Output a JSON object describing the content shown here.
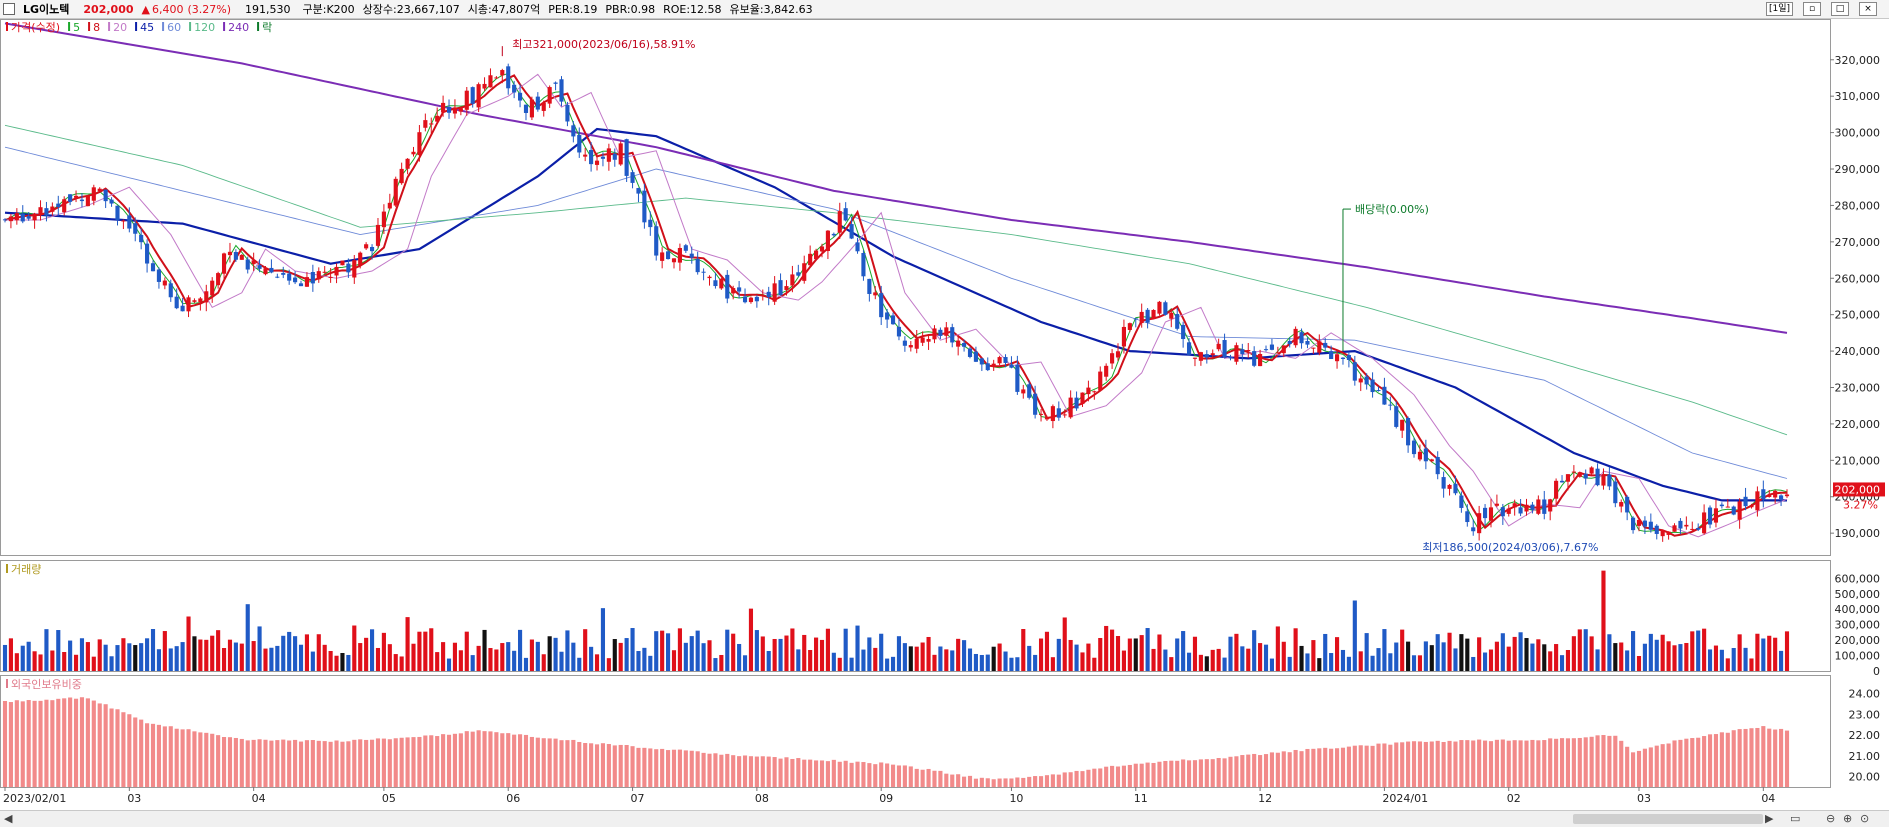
{
  "header": {
    "stock_name": "LG이노텍",
    "price": "202,000",
    "change_arrow": "▲",
    "change": "6,400",
    "change_pct": "(3.27%)",
    "prev": "191,530",
    "gubun": "구분:K200",
    "shares": "상장수:23,667,107",
    "mktcap": "시총:47,807억",
    "per": "PER:8.19",
    "pbr": "PBR:0.98",
    "roe": "ROE:12.58",
    "reserve": "유보율:3,842.63",
    "period": "[1일]",
    "colors": {
      "up": "#e0101a",
      "down": "#1f5ac6"
    }
  },
  "legend": {
    "items": [
      {
        "label": "가격(수정)",
        "color": "#e0101a"
      },
      {
        "label": "5",
        "color": "#1aa82a"
      },
      {
        "label": "8",
        "color": "#d0101a"
      },
      {
        "label": "20",
        "color": "#c27ac8"
      },
      {
        "label": "45",
        "color": "#0b1fa8"
      },
      {
        "label": "60",
        "color": "#6e8ad8"
      },
      {
        "label": "120",
        "color": "#5aba8a"
      },
      {
        "label": "240",
        "color": "#7b2db5"
      },
      {
        "label": "락",
        "color": "#0c7a2a"
      }
    ]
  },
  "volume_label": "거래량",
  "foreign_label": "외국인보유비중",
  "chart_data": {
    "type": "candlestick",
    "price_axis": {
      "ticks": [
        "320,000",
        "310,000",
        "300,000",
        "290,000",
        "280,000",
        "270,000",
        "260,000",
        "250,000",
        "240,000",
        "230,000",
        "220,000",
        "210,000",
        "200,000",
        "190,000"
      ],
      "range": [
        184000,
        329000
      ]
    },
    "volume_axis": {
      "ticks": [
        "600,000",
        "500,000",
        "400,000",
        "300,000",
        "200,000",
        "100,000",
        "0"
      ],
      "range": [
        0,
        680000
      ]
    },
    "foreign_axis": {
      "ticks": [
        "24.00",
        "23.00",
        "22.00",
        "21.00",
        "20.00"
      ],
      "range": [
        19.5,
        24.6
      ]
    },
    "x_labels": [
      "2023/02/01",
      "03",
      "04",
      "05",
      "06",
      "07",
      "08",
      "09",
      "10",
      "11",
      "12",
      "2024/01",
      "02",
      "03",
      "04"
    ],
    "annotations": {
      "high": "최고321,000(2023/06/16),58.91%",
      "low": "최저186,500(2024/03/06),7.67%",
      "dividend": "배당락(0.00%)",
      "last_price_tag": "202,000",
      "last_pct_tag": "3.27%"
    },
    "price_anchors": [
      [
        0,
        276000
      ],
      [
        8,
        280000
      ],
      [
        15,
        285000
      ],
      [
        22,
        272000
      ],
      [
        29,
        252000
      ],
      [
        34,
        256000
      ],
      [
        38,
        268000
      ],
      [
        43,
        262000
      ],
      [
        50,
        260000
      ],
      [
        56,
        262000
      ],
      [
        62,
        268000
      ],
      [
        66,
        288000
      ],
      [
        72,
        305000
      ],
      [
        79,
        310000
      ],
      [
        84,
        316000
      ],
      [
        88,
        307000
      ],
      [
        93,
        311000
      ],
      [
        98,
        293000
      ],
      [
        104,
        295000
      ],
      [
        110,
        268000
      ],
      [
        116,
        265000
      ],
      [
        122,
        256000
      ],
      [
        128,
        254000
      ],
      [
        132,
        259000
      ],
      [
        138,
        270000
      ],
      [
        142,
        278000
      ],
      [
        146,
        256000
      ],
      [
        152,
        243000
      ],
      [
        158,
        246000
      ],
      [
        164,
        236000
      ],
      [
        169,
        237000
      ],
      [
        174,
        222000
      ],
      [
        180,
        225000
      ],
      [
        186,
        234000
      ],
      [
        190,
        248000
      ],
      [
        196,
        252000
      ],
      [
        200,
        238000
      ],
      [
        206,
        240000
      ],
      [
        212,
        238000
      ],
      [
        218,
        245000
      ],
      [
        225,
        238000
      ],
      [
        232,
        228000
      ],
      [
        238,
        214000
      ],
      [
        242,
        207000
      ],
      [
        248,
        192000
      ],
      [
        254,
        198000
      ],
      [
        260,
        197000
      ],
      [
        264,
        207000
      ],
      [
        270,
        205000
      ],
      [
        275,
        192000
      ],
      [
        280,
        189000
      ],
      [
        286,
        193000
      ],
      [
        290,
        196000
      ],
      [
        296,
        200000
      ],
      [
        301,
        202000
      ]
    ],
    "ma_anchors": {
      "45": [
        [
          0,
          278000
        ],
        [
          30,
          275000
        ],
        [
          55,
          264000
        ],
        [
          70,
          268000
        ],
        [
          90,
          288000
        ],
        [
          100,
          301000
        ],
        [
          110,
          299000
        ],
        [
          130,
          285000
        ],
        [
          150,
          266000
        ],
        [
          175,
          248000
        ],
        [
          190,
          240000
        ],
        [
          210,
          238000
        ],
        [
          228,
          240000
        ],
        [
          245,
          230000
        ],
        [
          265,
          212000
        ],
        [
          280,
          203000
        ],
        [
          290,
          199000
        ],
        [
          301,
          199000
        ]
      ],
      "60": [
        [
          0,
          296000
        ],
        [
          30,
          284000
        ],
        [
          60,
          272000
        ],
        [
          90,
          280000
        ],
        [
          110,
          290000
        ],
        [
          140,
          279000
        ],
        [
          170,
          260000
        ],
        [
          200,
          244000
        ],
        [
          228,
          243000
        ],
        [
          260,
          232000
        ],
        [
          285,
          212000
        ],
        [
          301,
          205000
        ]
      ],
      "120": [
        [
          0,
          302000
        ],
        [
          30,
          291000
        ],
        [
          60,
          274000
        ],
        [
          90,
          278000
        ],
        [
          115,
          282000
        ],
        [
          140,
          278000
        ],
        [
          170,
          272000
        ],
        [
          200,
          264000
        ],
        [
          230,
          252000
        ],
        [
          260,
          238000
        ],
        [
          285,
          226000
        ],
        [
          301,
          217000
        ]
      ],
      "240": [
        [
          0,
          330000
        ],
        [
          40,
          319000
        ],
        [
          80,
          305000
        ],
        [
          110,
          296000
        ],
        [
          140,
          284000
        ],
        [
          170,
          276000
        ],
        [
          200,
          270000
        ],
        [
          230,
          263000
        ],
        [
          260,
          255000
        ],
        [
          285,
          249000
        ],
        [
          301,
          245000
        ]
      ]
    },
    "foreign_anchors": [
      [
        0,
        23.6
      ],
      [
        14,
        23.8
      ],
      [
        24,
        22.6
      ],
      [
        40,
        21.8
      ],
      [
        55,
        21.7
      ],
      [
        70,
        21.9
      ],
      [
        80,
        22.2
      ],
      [
        100,
        21.6
      ],
      [
        125,
        21.0
      ],
      [
        150,
        20.6
      ],
      [
        165,
        19.9
      ],
      [
        175,
        20.0
      ],
      [
        190,
        20.6
      ],
      [
        205,
        20.9
      ],
      [
        220,
        21.3
      ],
      [
        240,
        21.7
      ],
      [
        262,
        21.8
      ],
      [
        272,
        22.0
      ],
      [
        275,
        21.2
      ],
      [
        282,
        21.7
      ],
      [
        292,
        22.2
      ],
      [
        297,
        22.4
      ],
      [
        301,
        22.2
      ]
    ],
    "candle_count": 302
  }
}
